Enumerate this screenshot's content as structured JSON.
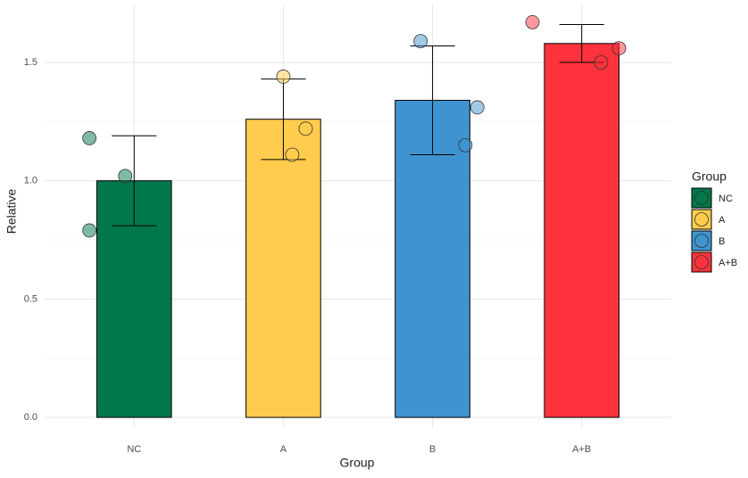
{
  "chart_data": {
    "type": "bar",
    "x_label": "Group",
    "y_label": "Relative",
    "legend_title": "Group",
    "categories": [
      "NC",
      "A",
      "B",
      "A+B"
    ],
    "values": [
      1.0,
      1.26,
      1.34,
      1.58
    ],
    "errors": [
      0.19,
      0.17,
      0.23,
      0.08
    ],
    "points": [
      [
        1.18,
        1.02,
        0.79
      ],
      [
        1.44,
        1.22,
        1.11
      ],
      [
        1.59,
        1.31,
        1.15
      ],
      [
        1.67,
        1.56,
        1.5
      ]
    ],
    "colors": [
      "#00784a",
      "#ffcc4d",
      "#3f94d0",
      "#ff333d"
    ],
    "ylim": [
      -0.045,
      1.745
    ],
    "yticks": [
      {
        "value": 0,
        "label": "0.0"
      },
      {
        "value": 0.5,
        "label": "0.5"
      },
      {
        "value": 1,
        "label": "1.0"
      },
      {
        "value": 1.5,
        "label": "1.5"
      }
    ],
    "minor_yticks": [
      0.25,
      0.75,
      1.25
    ],
    "grid": true,
    "legend_position": "right"
  }
}
